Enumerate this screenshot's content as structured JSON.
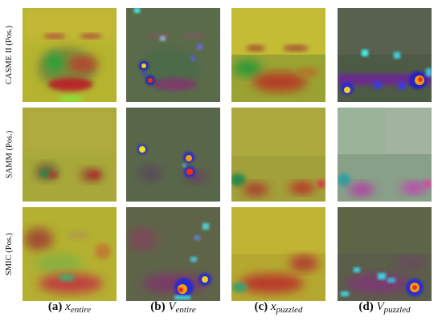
{
  "rows": [
    {
      "label": "CASME II (Pos.)"
    },
    {
      "label": "SAMM (Pos.)"
    },
    {
      "label": "SMIC (Pos.)"
    }
  ],
  "columns": [
    {
      "letter": "(a)",
      "symbol": "x",
      "subscript": "entire"
    },
    {
      "letter": "(b)",
      "symbol": "V",
      "subscript": "entire"
    },
    {
      "letter": "(c)",
      "symbol": "x",
      "subscript": "puzzled"
    },
    {
      "letter": "(d)",
      "symbol": "V",
      "subscript": "puzzled"
    }
  ]
}
